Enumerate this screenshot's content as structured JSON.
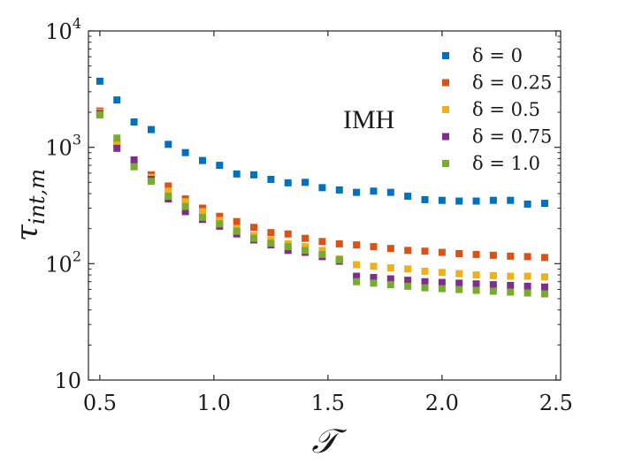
{
  "chart_data": {
    "type": "scatter",
    "title": "",
    "annotation": "IMH",
    "xlabel": "𝒯",
    "ylabel_main": "τ",
    "ylabel_sub": "int,m",
    "xlim": [
      0.45,
      2.52
    ],
    "ylim": [
      10,
      10000
    ],
    "yscale": "log",
    "grid": false,
    "legend_position": "top-right",
    "x_ticks": [
      {
        "value": 0.5,
        "label": "0.5"
      },
      {
        "value": 1.0,
        "label": "1.0"
      },
      {
        "value": 1.5,
        "label": "1.5"
      },
      {
        "value": 2.0,
        "label": "2.0"
      },
      {
        "value": 2.5,
        "label": "2.5"
      }
    ],
    "y_ticks": [
      {
        "value": 10,
        "base": "10",
        "exp": ""
      },
      {
        "value": 100,
        "base": "10",
        "exp": "2"
      },
      {
        "value": 1000,
        "base": "10",
        "exp": "3"
      },
      {
        "value": 10000,
        "base": "10",
        "exp": "4"
      }
    ],
    "x": [
      0.5,
      0.575,
      0.65,
      0.725,
      0.8,
      0.875,
      0.95,
      1.025,
      1.1,
      1.175,
      1.25,
      1.325,
      1.4,
      1.475,
      1.55,
      1.625,
      1.7,
      1.775,
      1.85,
      1.925,
      2.0,
      2.075,
      2.15,
      2.225,
      2.3,
      2.375,
      2.45
    ],
    "series": [
      {
        "name": "δ = 0",
        "color": "#0072BD",
        "values": [
          3700,
          2550,
          1650,
          1420,
          1060,
          900,
          770,
          700,
          590,
          580,
          530,
          495,
          500,
          450,
          430,
          410,
          420,
          410,
          380,
          355,
          350,
          345,
          345,
          350,
          350,
          325,
          330
        ]
      },
      {
        "name": "δ = 0.25",
        "color": "#D95319",
        "values": [
          2050,
          1080,
          720,
          580,
          465,
          360,
          300,
          255,
          230,
          205,
          185,
          180,
          165,
          155,
          148,
          145,
          140,
          135,
          130,
          128,
          125,
          122,
          120,
          118,
          116,
          115,
          113
        ]
      },
      {
        "name": "δ = 0.5",
        "color": "#EDB120",
        "values": [
          2000,
          1050,
          700,
          550,
          420,
          340,
          280,
          235,
          200,
          175,
          160,
          148,
          140,
          130,
          110,
          98,
          95,
          92,
          90,
          86,
          84,
          82,
          80,
          79,
          78,
          78,
          77
        ]
      },
      {
        "name": "δ = 0.75",
        "color": "#7E2F8E",
        "values": [
          1950,
          980,
          780,
          530,
          360,
          280,
          240,
          210,
          180,
          160,
          145,
          130,
          125,
          115,
          105,
          78,
          76,
          74,
          72,
          70,
          69,
          68,
          67,
          66,
          65,
          64,
          63
        ]
      },
      {
        "name": "δ = 1.0",
        "color": "#77AC30",
        "values": [
          1900,
          1200,
          680,
          510,
          380,
          310,
          250,
          220,
          190,
          165,
          150,
          140,
          130,
          120,
          108,
          70,
          68,
          66,
          64,
          62,
          61,
          60,
          59,
          58,
          57,
          56,
          55
        ]
      }
    ]
  }
}
